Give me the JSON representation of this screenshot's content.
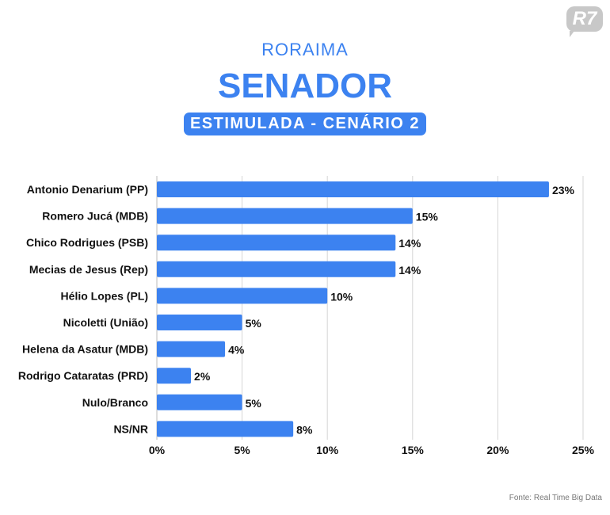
{
  "header": {
    "region": "RORAIMA",
    "title": "SENADOR",
    "subtitle": "ESTIMULADA - CENÁRIO 2",
    "logo": "R7"
  },
  "source": "Fonte: Real Time Big Data",
  "colors": {
    "bar": "#3c82f0",
    "grid": "#d6d6d6"
  },
  "chart_data": {
    "type": "bar",
    "orientation": "horizontal",
    "categories": [
      "Antonio Denarium (PP)",
      "Romero Jucá (MDB)",
      "Chico Rodrigues (PSB)",
      "Mecias de Jesus (Rep)",
      "Hélio Lopes (PL)",
      "Nicoletti (União)",
      "Helena da Asatur (MDB)",
      "Rodrigo Cataratas (PRD)",
      "Nulo/Branco",
      "NS/NR"
    ],
    "values": [
      23,
      15,
      14,
      14,
      10,
      5,
      4,
      2,
      5,
      8
    ],
    "data_labels": [
      "23%",
      "15%",
      "14%",
      "14%",
      "10%",
      "5%",
      "4%",
      "2%",
      "5%",
      "8%"
    ],
    "xlim": [
      0,
      25
    ],
    "xticks": [
      0,
      5,
      10,
      15,
      20,
      25
    ],
    "xtick_labels": [
      "0%",
      "5%",
      "10%",
      "15%",
      "20%",
      "25%"
    ],
    "grid": true
  }
}
